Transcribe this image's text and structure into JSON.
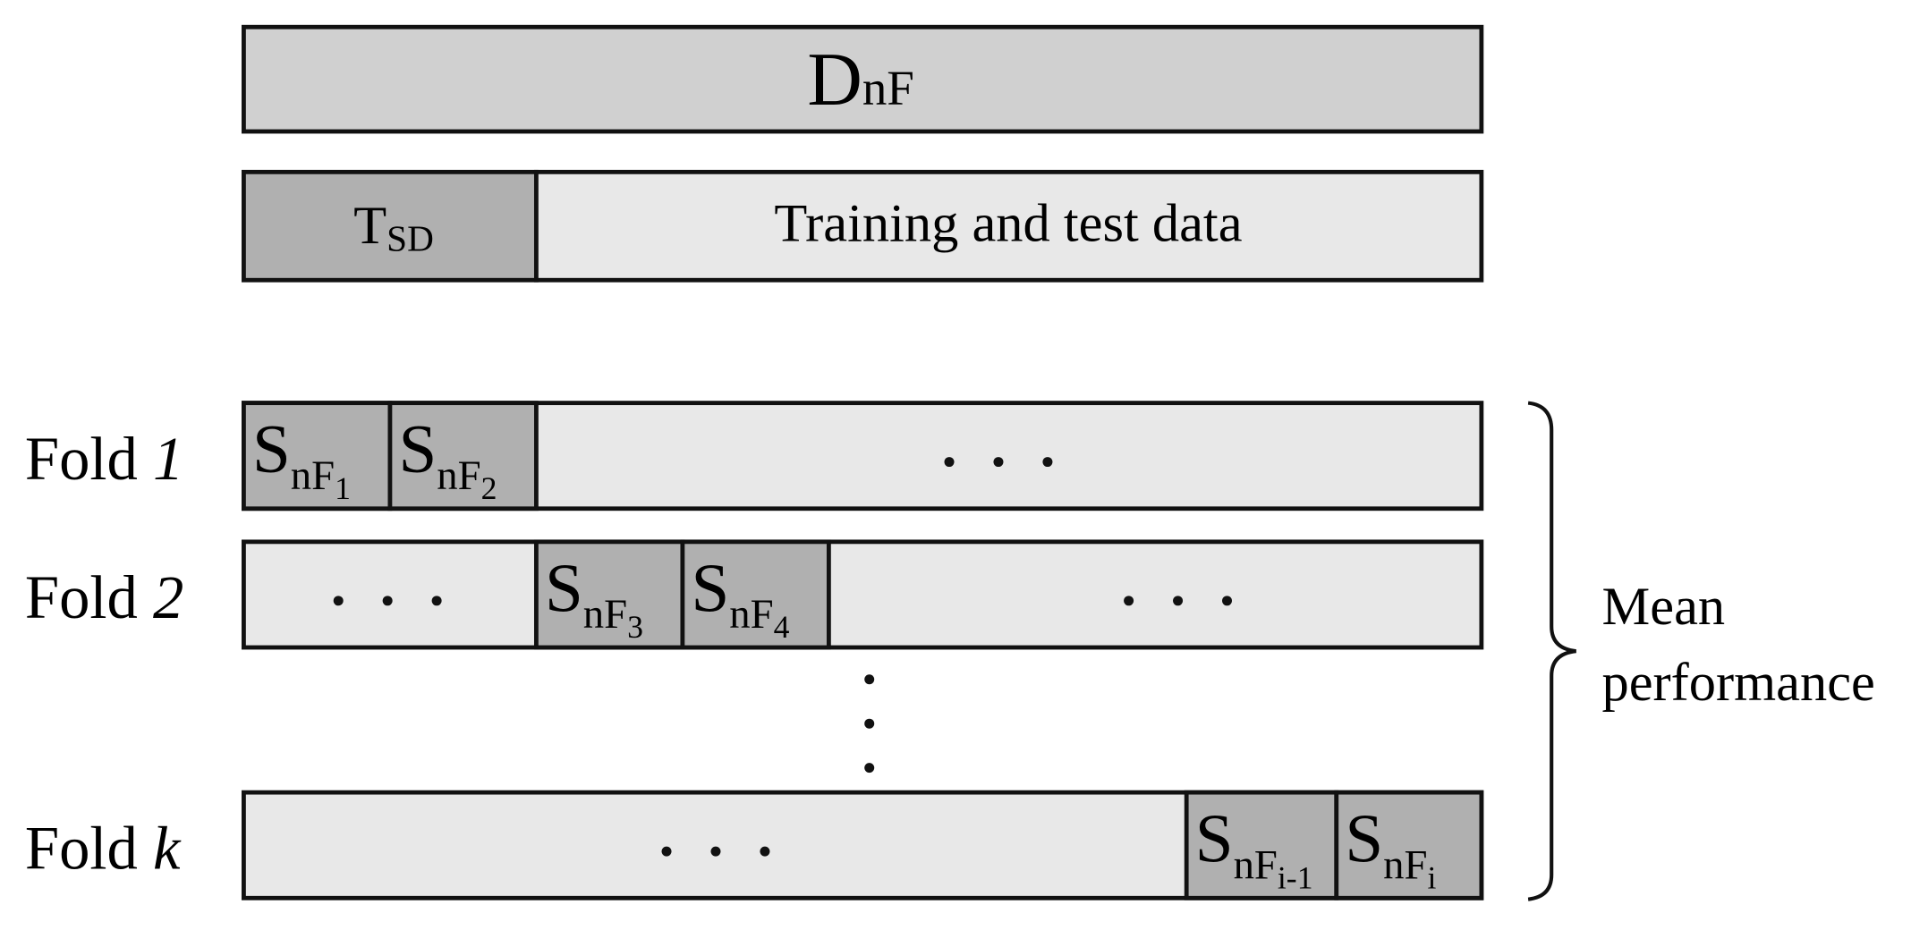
{
  "dataset": {
    "symbol": "D",
    "subscript": "nF"
  },
  "split": {
    "held_out": {
      "symbol": "T",
      "subscript": "SD"
    },
    "rest": "Training and test data"
  },
  "folds": [
    {
      "label": "Fold",
      "index": "1",
      "segments": [
        {
          "symbol": "S",
          "subscript": "nF",
          "subsubscript": "1"
        },
        {
          "symbol": "S",
          "subscript": "nF",
          "subsubscript": "2"
        }
      ]
    },
    {
      "label": "Fold",
      "index": "2",
      "segments": [
        {
          "symbol": "S",
          "subscript": "nF",
          "subsubscript": "3"
        },
        {
          "symbol": "S",
          "subscript": "nF",
          "subsubscript": "4"
        }
      ]
    },
    {
      "label": "Fold",
      "index": "k",
      "segments": [
        {
          "symbol": "S",
          "subscript": "nF",
          "subsubscript": "i-1"
        },
        {
          "symbol": "S",
          "subscript": "nF",
          "subsubscript": "i"
        }
      ]
    }
  ],
  "result": {
    "line1": "Mean",
    "line2": "performance"
  }
}
